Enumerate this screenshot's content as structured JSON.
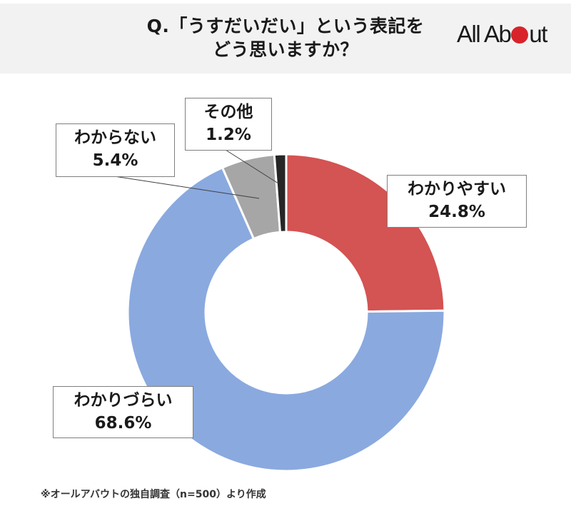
{
  "header": {
    "title_line1": "Q.「うすだいだい」という表記を",
    "title_line2": "どう思いますか？",
    "logo_text_before": "All Ab",
    "logo_text_after": "ut",
    "logo_accent_color": "#d9232a"
  },
  "labels": {
    "easy": {
      "name": "わかりやすい",
      "value": "24.8%"
    },
    "hard": {
      "name": "わかりづらい",
      "value": "68.6%"
    },
    "unknown": {
      "name": "わからない",
      "value": "5.4%"
    },
    "other": {
      "name": "その他",
      "value": "1.2%"
    }
  },
  "footnote": "※オールアバウトの独自調査（n=500）より作成",
  "chart_data": {
    "type": "pie",
    "subtype": "donut",
    "title": "Q.「うすだいだい」という表記をどう思いますか？",
    "categories": [
      "わかりやすい",
      "わかりづらい",
      "わからない",
      "その他"
    ],
    "values": [
      24.8,
      68.6,
      5.4,
      1.2
    ],
    "unit": "%",
    "colors": [
      "#d45353",
      "#8aa9df",
      "#a6a6a6",
      "#262626"
    ],
    "start_angle": "12 o'clock, clockwise",
    "sample_size": "n=500",
    "source_note": "※オールアバウトの独自調査（n=500）より作成",
    "legend": "none (callout data labels)"
  }
}
